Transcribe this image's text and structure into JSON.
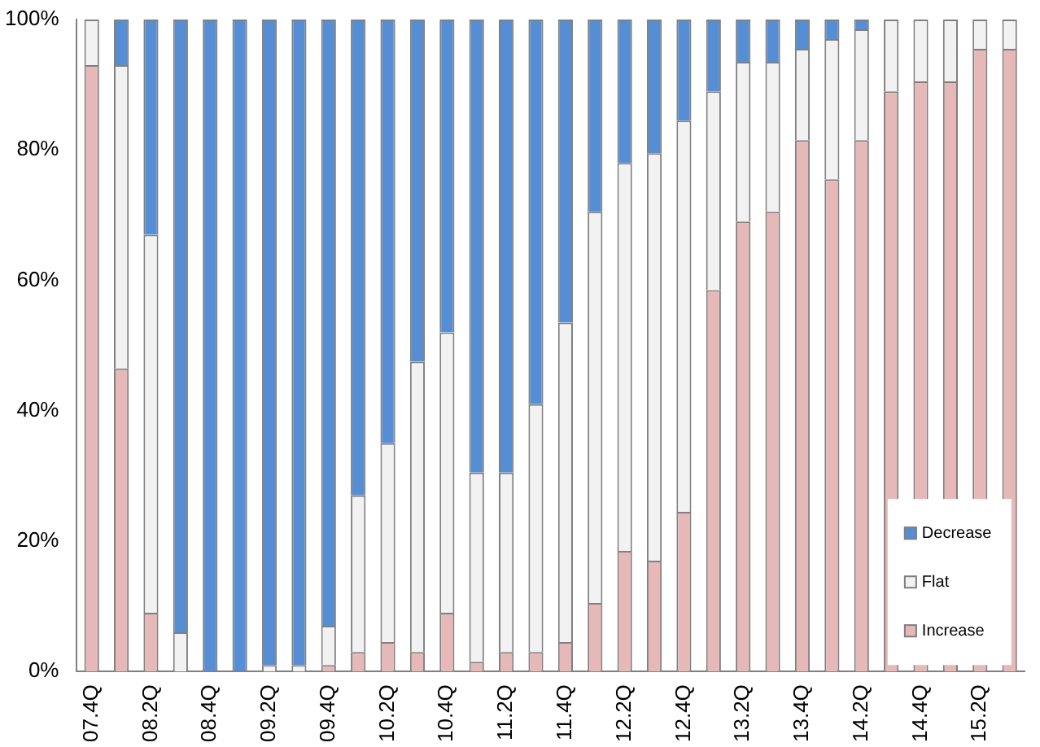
{
  "chart_data": {
    "type": "bar",
    "stacked": true,
    "categories": [
      "07.4Q",
      null,
      "08.2Q",
      null,
      "08.4Q",
      null,
      "09.2Q",
      null,
      "09.4Q",
      null,
      "10.2Q",
      null,
      "10.4Q",
      null,
      "11.2Q",
      null,
      "11.4Q",
      null,
      "12.2Q",
      null,
      "12.4Q",
      null,
      "13.2Q",
      null,
      "13.4Q",
      null,
      "14.2Q",
      null,
      "14.4Q",
      null,
      "15.2Q",
      null
    ],
    "series": [
      {
        "name": "Increase",
        "color": "#e6b9b8",
        "values": [
          93,
          46.5,
          9,
          0,
          0,
          0,
          0,
          0,
          1,
          3,
          4.5,
          3,
          9,
          1.5,
          3,
          3,
          4.5,
          10.5,
          18.5,
          17,
          24.5,
          58.5,
          69,
          70.5,
          81.5,
          75.5,
          81.5,
          89,
          90.5,
          90.5,
          95.5,
          95.5
        ]
      },
      {
        "name": "Flat",
        "color": "#f2f2f2",
        "values": [
          7,
          46.5,
          58,
          6,
          0,
          0,
          1,
          1,
          6,
          24,
          30.5,
          44.5,
          43,
          29,
          27.5,
          38,
          49,
          60,
          59.5,
          62.5,
          60,
          30.5,
          24.5,
          23,
          14,
          21.5,
          17,
          11,
          9.5,
          9.5,
          4.5,
          4.5
        ]
      },
      {
        "name": "Decrease",
        "color": "#558ed5",
        "values": [
          0,
          7,
          33,
          94,
          100,
          100,
          99,
          99,
          93,
          73,
          65,
          52.5,
          48,
          69.5,
          69.5,
          59,
          46.5,
          29.5,
          22,
          20.5,
          15.5,
          11,
          6.5,
          6.5,
          4.5,
          3,
          1.5,
          0,
          0,
          0,
          0,
          0
        ]
      }
    ],
    "ylim": [
      0,
      100
    ],
    "yticks": [
      {
        "value": 0,
        "label": "0%"
      },
      {
        "value": 20,
        "label": "20%"
      },
      {
        "value": 40,
        "label": "40%"
      },
      {
        "value": 60,
        "label": "60%"
      },
      {
        "value": 80,
        "label": "80%"
      },
      {
        "value": 100,
        "label": "100%"
      }
    ],
    "grid": false,
    "legend": "bottom right"
  }
}
